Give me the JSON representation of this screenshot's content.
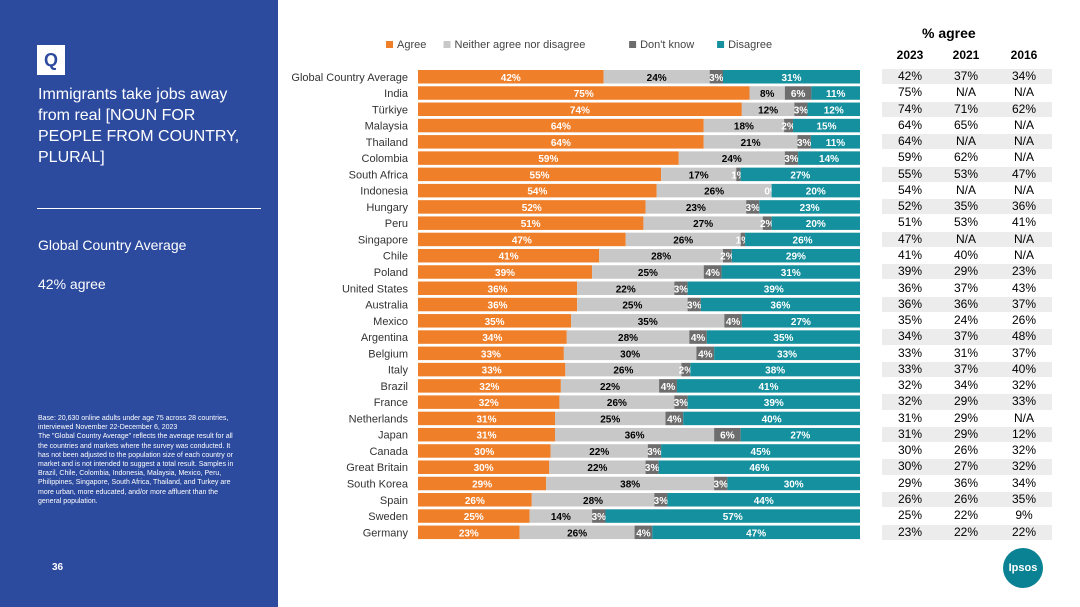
{
  "sidebar": {
    "badge": "Q",
    "question": "Immigrants take jobs away from real [NOUN FOR PEOPLE FROM COUNTRY, PLURAL]",
    "average_label": "Global Country Average",
    "average_value": "42% agree",
    "base_note": "Base: 20,630 online adults under age 75 across 28 countries, interviewed November 22-December 6, 2023\nThe \"Global Country Average\" reflects the average result for all the countries and markets where the survey was conducted. It has not been adjusted to the population size of each country or market and is not intended to suggest a total result. Samples in Brazil, Chile, Colombia, Indonesia, Malaysia, Mexico, Peru, Philippines, Singapore, South Africa, Thailand, and Turkey are more urban, more educated, and/or more affluent than the general population.",
    "page_number": "36"
  },
  "colors": {
    "agree": "#f07f2a",
    "neither": "#c8c8c8",
    "dont_know": "#6d6d6d",
    "disagree": "#14909e",
    "sidebar": "#2c4a9e"
  },
  "chart_data": {
    "type": "bar",
    "orientation": "horizontal",
    "stacked": true,
    "legend_position": "top",
    "series": [
      {
        "name": "Agree",
        "values": [
          42,
          75,
          74,
          64,
          64,
          59,
          55,
          54,
          52,
          51,
          47,
          41,
          39,
          36,
          36,
          35,
          34,
          33,
          33,
          32,
          32,
          31,
          31,
          30,
          30,
          29,
          26,
          25,
          23
        ]
      },
      {
        "name": "Neither agree nor disagree",
        "values": [
          24,
          8,
          12,
          18,
          21,
          24,
          17,
          26,
          23,
          27,
          26,
          28,
          25,
          22,
          25,
          35,
          28,
          30,
          26,
          22,
          26,
          25,
          36,
          22,
          22,
          38,
          28,
          14,
          26
        ]
      },
      {
        "name": "Don't know",
        "values": [
          3,
          6,
          3,
          2,
          3,
          3,
          1,
          0,
          3,
          2,
          1,
          2,
          4,
          3,
          3,
          4,
          4,
          4,
          2,
          4,
          3,
          4,
          6,
          3,
          3,
          3,
          3,
          3,
          4
        ]
      },
      {
        "name": "Disagree",
        "values": [
          31,
          11,
          12,
          15,
          11,
          14,
          27,
          20,
          23,
          20,
          26,
          29,
          31,
          39,
          36,
          27,
          35,
          33,
          38,
          41,
          39,
          40,
          27,
          45,
          46,
          30,
          44,
          57,
          47
        ]
      }
    ],
    "categories": [
      "Global Country Average",
      "India",
      "Türkiye",
      "Malaysia",
      "Thailand",
      "Colombia",
      "South Africa",
      "Indonesia",
      "Hungary",
      "Peru",
      "Singapore",
      "Chile",
      "Poland",
      "United States",
      "Australia",
      "Mexico",
      "Argentina",
      "Belgium",
      "Italy",
      "Brazil",
      "France",
      "Netherlands",
      "Japan",
      "Canada",
      "Great Britain",
      "South Korea",
      "Spain",
      "Sweden",
      "Germany"
    ],
    "segment_labels": [
      [
        "42%",
        "24%",
        "3%",
        "31%"
      ],
      [
        "75%",
        "8%",
        "6%",
        "11%"
      ],
      [
        "74%",
        "12%",
        "3%",
        "12%"
      ],
      [
        "64%",
        "18%",
        "2%",
        "15%"
      ],
      [
        "64%",
        "21%",
        "3%",
        "11%"
      ],
      [
        "59%",
        "24%",
        "3%",
        "14%"
      ],
      [
        "55%",
        "17%",
        "1%",
        "27%"
      ],
      [
        "54%",
        "26%",
        "0%",
        "20%"
      ],
      [
        "52%",
        "23%",
        "3%",
        "23%"
      ],
      [
        "51%",
        "27%",
        "2%",
        "20%"
      ],
      [
        "47%",
        "26%",
        "1%",
        "26%"
      ],
      [
        "41%",
        "28%",
        "2%",
        "29%"
      ],
      [
        "39%",
        "25%",
        "4%",
        "31%"
      ],
      [
        "36%",
        "22%",
        "3%",
        "39%"
      ],
      [
        "36%",
        "25%",
        "3%",
        "36%"
      ],
      [
        "35%",
        "35%",
        "4%",
        "27%"
      ],
      [
        "34%",
        "28%",
        "4%",
        "35%"
      ],
      [
        "33%",
        "30%",
        "4%",
        "33%"
      ],
      [
        "33%",
        "26%",
        "2%",
        "38%"
      ],
      [
        "32%",
        "22%",
        "4%",
        "41%"
      ],
      [
        "32%",
        "26%",
        "3%",
        "39%"
      ],
      [
        "31%",
        "25%",
        "4%",
        "40%"
      ],
      [
        "31%",
        "36%",
        "6%",
        "27%"
      ],
      [
        "30%",
        "22%",
        "3%",
        "45%"
      ],
      [
        "30%",
        "22%",
        "3%",
        "46%"
      ],
      [
        "29%",
        "38%",
        "3%",
        "30%"
      ],
      [
        "26%",
        "28%",
        "3%",
        "44%"
      ],
      [
        "25%",
        "14%",
        "3%",
        "57%"
      ],
      [
        "23%",
        "26%",
        "4%",
        "47%"
      ]
    ],
    "xlim": [
      0,
      100
    ]
  },
  "agree_table": {
    "title": "% agree",
    "years": [
      "2023",
      "2021",
      "2016"
    ],
    "rows": [
      [
        "42%",
        "37%",
        "34%"
      ],
      [
        "75%",
        "N/A",
        "N/A"
      ],
      [
        "74%",
        "71%",
        "62%"
      ],
      [
        "64%",
        "65%",
        "N/A"
      ],
      [
        "64%",
        "N/A",
        "N/A"
      ],
      [
        "59%",
        "62%",
        "N/A"
      ],
      [
        "55%",
        "53%",
        "47%"
      ],
      [
        "54%",
        "N/A",
        "N/A"
      ],
      [
        "52%",
        "35%",
        "36%"
      ],
      [
        "51%",
        "53%",
        "41%"
      ],
      [
        "47%",
        "N/A",
        "N/A"
      ],
      [
        "41%",
        "40%",
        "N/A"
      ],
      [
        "39%",
        "29%",
        "23%"
      ],
      [
        "36%",
        "37%",
        "43%"
      ],
      [
        "36%",
        "36%",
        "37%"
      ],
      [
        "35%",
        "24%",
        "26%"
      ],
      [
        "34%",
        "37%",
        "48%"
      ],
      [
        "33%",
        "31%",
        "37%"
      ],
      [
        "33%",
        "37%",
        "40%"
      ],
      [
        "32%",
        "34%",
        "32%"
      ],
      [
        "32%",
        "29%",
        "33%"
      ],
      [
        "31%",
        "29%",
        "N/A"
      ],
      [
        "31%",
        "29%",
        "12%"
      ],
      [
        "30%",
        "26%",
        "32%"
      ],
      [
        "30%",
        "27%",
        "32%"
      ],
      [
        "29%",
        "36%",
        "34%"
      ],
      [
        "26%",
        "26%",
        "35%"
      ],
      [
        "25%",
        "22%",
        "9%"
      ],
      [
        "23%",
        "22%",
        "22%"
      ]
    ]
  },
  "logo": {
    "text": "Ipsos"
  }
}
